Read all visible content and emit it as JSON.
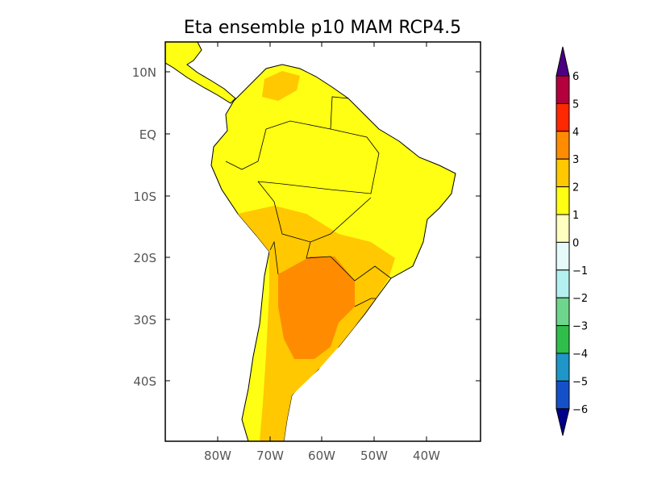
{
  "title": "Eta ensemble p10 MAM RCP4.5",
  "map": {
    "lon_range": [
      -90,
      -30
    ],
    "lat_range": [
      -50,
      15
    ],
    "lat_ticks": [
      "10N",
      "EQ",
      "10S",
      "20S",
      "30S",
      "40S"
    ],
    "lon_ticks": [
      "80W",
      "70W",
      "60W",
      "50W",
      "40W"
    ],
    "colors": {
      "land_1_2": "#ffff14",
      "land_2_3": "#ffc800",
      "land_3_4": "#ff8c00",
      "coast": "#000000"
    }
  },
  "colorbar": {
    "labels": [
      "6",
      "5",
      "4",
      "3",
      "2",
      "1",
      "0",
      "-1",
      "-2",
      "-3",
      "-4",
      "-5",
      "-6"
    ],
    "top_extend_color": "#4b0082",
    "bottom_extend_color": "#00008b",
    "colors": [
      "#b4003c",
      "#ff2800",
      "#ff8c00",
      "#ffc800",
      "#ffff14",
      "#ffffc0",
      "#e6fafa",
      "#b4f0f0",
      "#6ed68c",
      "#2fbe4a",
      "#1e96c8",
      "#1450c8"
    ]
  }
}
